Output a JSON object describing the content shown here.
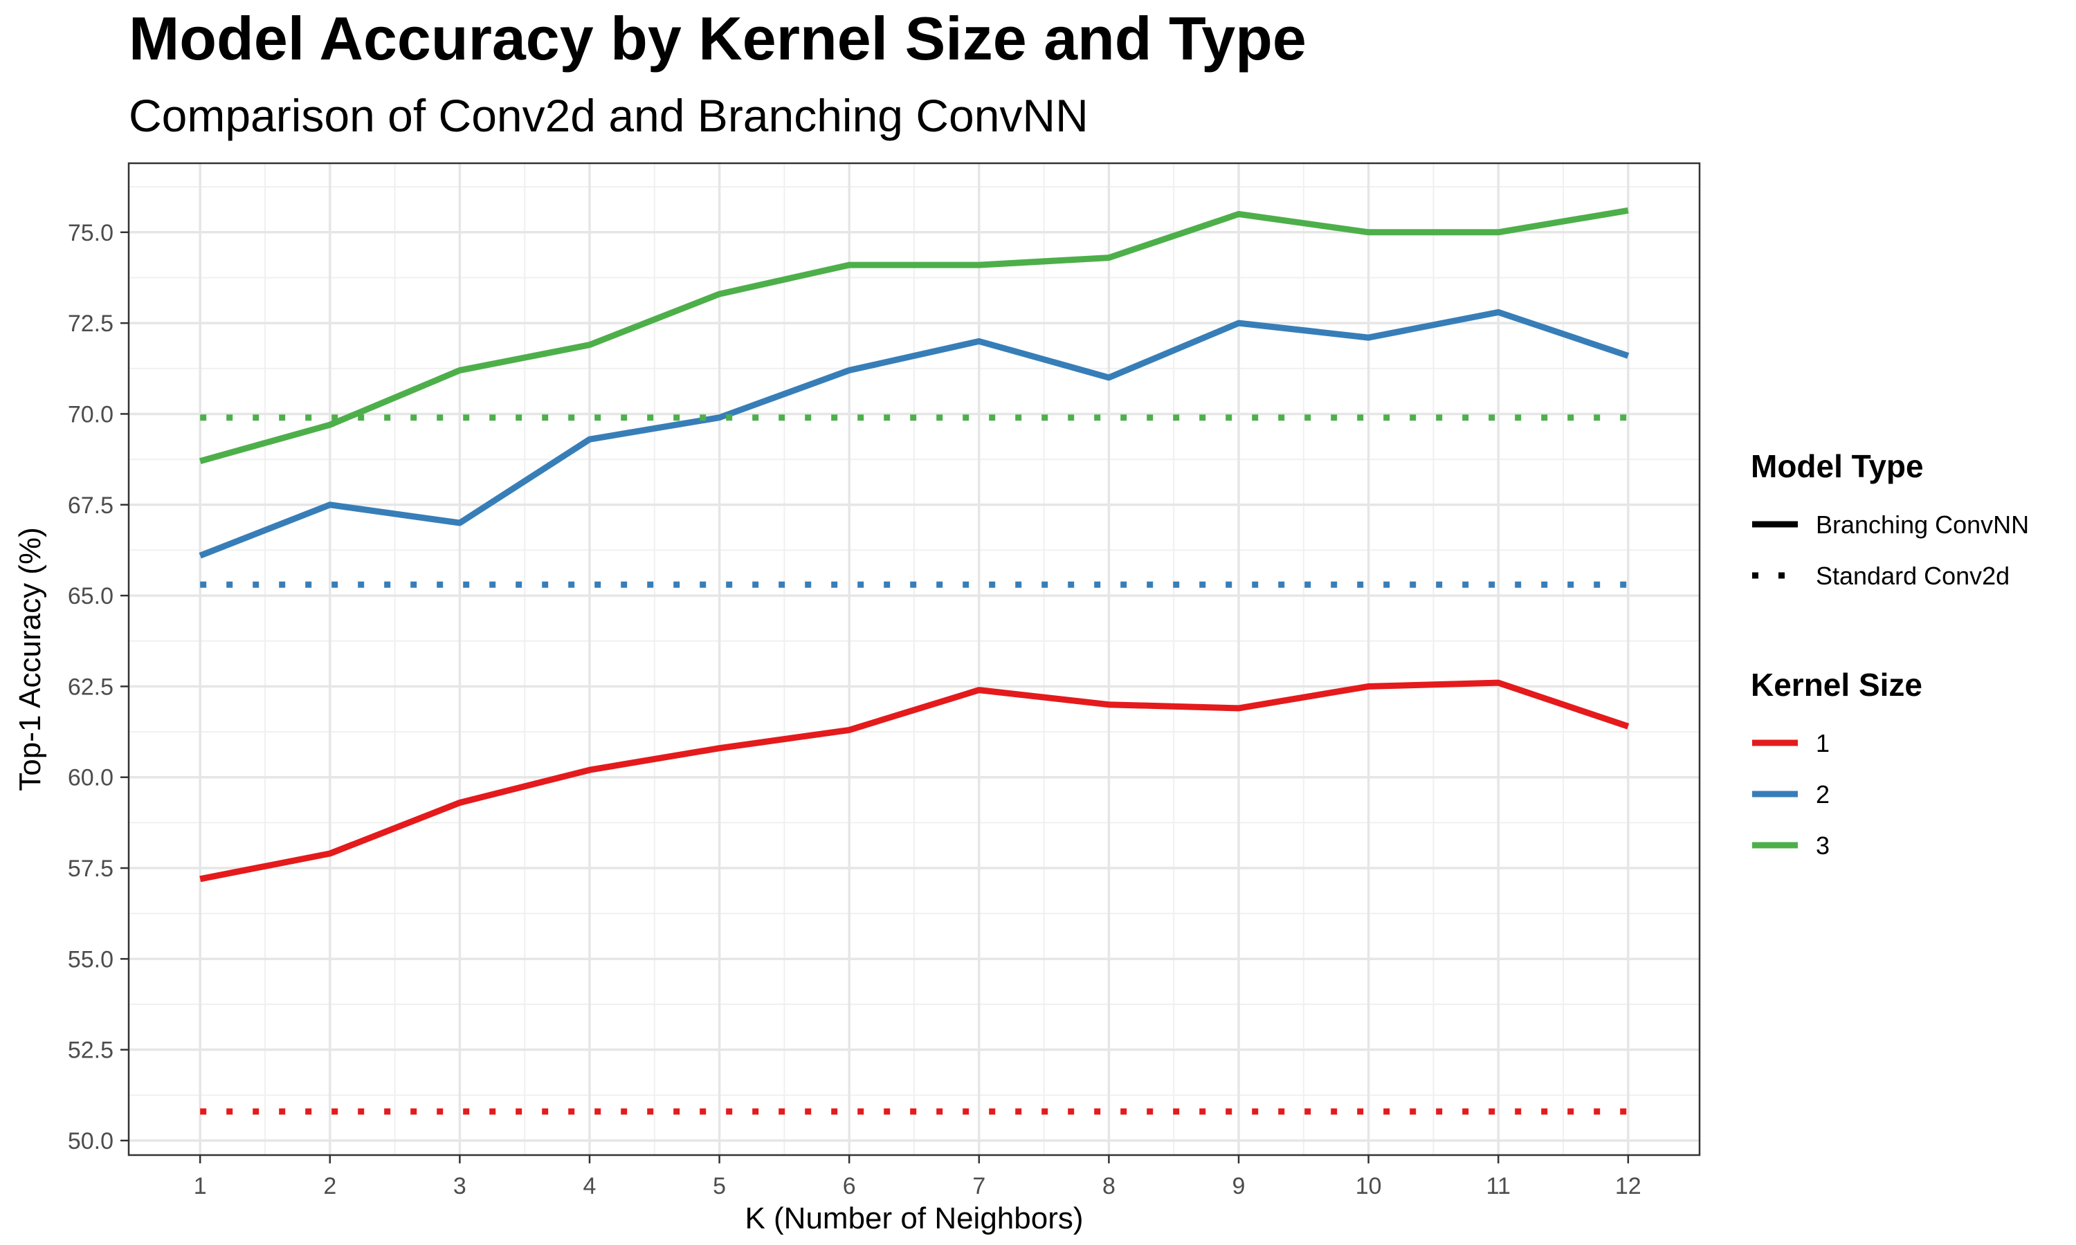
{
  "chart_data": {
    "type": "line",
    "title": "Model Accuracy by Kernel Size and Type",
    "subtitle": "Comparison of Conv2d and Branching ConvNN",
    "xlabel": "K (Number of Neighbors)",
    "ylabel": "Top-1 Accuracy (%)",
    "x": [
      1,
      2,
      3,
      4,
      5,
      6,
      7,
      8,
      9,
      10,
      11,
      12
    ],
    "x_ticks": [
      "1",
      "2",
      "3",
      "4",
      "5",
      "6",
      "7",
      "8",
      "9",
      "10",
      "11",
      "12"
    ],
    "xlim": [
      0.45,
      12.55
    ],
    "ylim": [
      49.6,
      76.9
    ],
    "y_ticks": [
      50.0,
      52.5,
      55.0,
      57.5,
      60.0,
      62.5,
      65.0,
      67.5,
      70.0,
      72.5,
      75.0
    ],
    "y_tick_labels": [
      "50.0",
      "52.5",
      "55.0",
      "57.5",
      "60.0",
      "62.5",
      "65.0",
      "67.5",
      "70.0",
      "72.5",
      "75.0"
    ],
    "grid": true,
    "legend_placement": "right",
    "series": [
      {
        "kernel": "1",
        "model": "Branching ConvNN",
        "color": "#e41a1c",
        "style": "solid",
        "values": [
          57.2,
          57.9,
          59.3,
          60.2,
          60.8,
          61.3,
          62.4,
          62.0,
          61.9,
          62.5,
          62.6,
          61.4
        ]
      },
      {
        "kernel": "2",
        "model": "Branching ConvNN",
        "color": "#377eb8",
        "style": "solid",
        "values": [
          66.1,
          67.5,
          67.0,
          69.3,
          69.9,
          71.2,
          72.0,
          71.0,
          72.5,
          72.1,
          72.8,
          71.6
        ]
      },
      {
        "kernel": "3",
        "model": "Branching ConvNN",
        "color": "#4daf4a",
        "style": "solid",
        "values": [
          68.7,
          69.7,
          71.2,
          71.9,
          73.3,
          74.1,
          74.1,
          74.3,
          75.5,
          75.0,
          75.0,
          75.6
        ]
      },
      {
        "kernel": "1",
        "model": "Standard Conv2d",
        "color": "#e41a1c",
        "style": "dotted",
        "values": [
          50.8,
          50.8,
          50.8,
          50.8,
          50.8,
          50.8,
          50.8,
          50.8,
          50.8,
          50.8,
          50.8,
          50.8
        ]
      },
      {
        "kernel": "2",
        "model": "Standard Conv2d",
        "color": "#377eb8",
        "style": "dotted",
        "values": [
          65.3,
          65.3,
          65.3,
          65.3,
          65.3,
          65.3,
          65.3,
          65.3,
          65.3,
          65.3,
          65.3,
          65.3
        ]
      },
      {
        "kernel": "3",
        "model": "Standard Conv2d",
        "color": "#4daf4a",
        "style": "dotted",
        "values": [
          69.9,
          69.9,
          69.9,
          69.9,
          69.9,
          69.9,
          69.9,
          69.9,
          69.9,
          69.9,
          69.9,
          69.9
        ]
      }
    ],
    "legend": {
      "model_type_title": "Model Type",
      "model_type_items": [
        {
          "label": "Branching ConvNN",
          "style": "solid"
        },
        {
          "label": "Standard Conv2d",
          "style": "dotted"
        }
      ],
      "kernel_title": "Kernel Size",
      "kernel_items": [
        {
          "label": "1",
          "color": "#e41a1c"
        },
        {
          "label": "2",
          "color": "#377eb8"
        },
        {
          "label": "3",
          "color": "#4daf4a"
        }
      ]
    }
  }
}
